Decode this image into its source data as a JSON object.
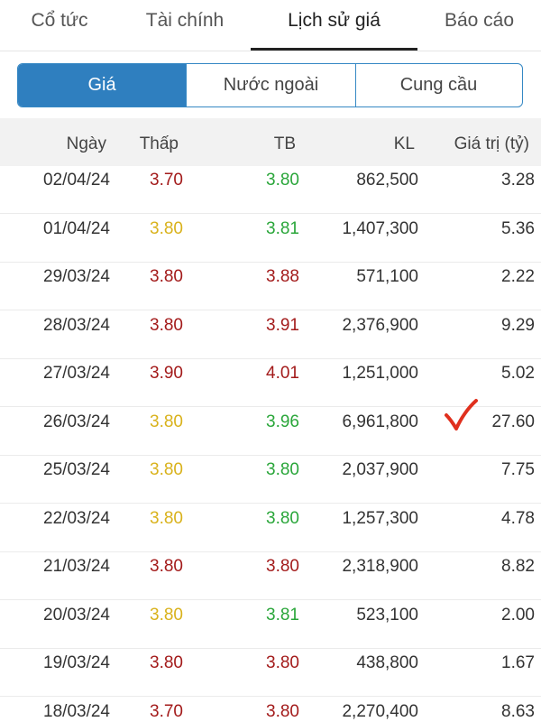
{
  "tabs": [
    {
      "label": "Cổ tức"
    },
    {
      "label": "Tài chính"
    },
    {
      "label": "Lịch sử giá"
    },
    {
      "label": "Báo cáo"
    }
  ],
  "segments": [
    {
      "label": "Giá"
    },
    {
      "label": "Nước ngoài"
    },
    {
      "label": "Cung cầu"
    }
  ],
  "table": {
    "headers": [
      "Ngày",
      "Thấp",
      "TB",
      "KL",
      "Giá trị (tỷ)"
    ],
    "rows": [
      {
        "date": "02/04/24",
        "low": "3.70",
        "low_color": "red",
        "avg": "3.80",
        "avg_color": "green",
        "vol": "862,500",
        "value": "3.28"
      },
      {
        "date": "01/04/24",
        "low": "3.80",
        "low_color": "yellow",
        "avg": "3.81",
        "avg_color": "green",
        "vol": "1,407,300",
        "value": "5.36"
      },
      {
        "date": "29/03/24",
        "low": "3.80",
        "low_color": "red",
        "avg": "3.88",
        "avg_color": "red",
        "vol": "571,100",
        "value": "2.22"
      },
      {
        "date": "28/03/24",
        "low": "3.80",
        "low_color": "red",
        "avg": "3.91",
        "avg_color": "red",
        "vol": "2,376,900",
        "value": "9.29"
      },
      {
        "date": "27/03/24",
        "low": "3.90",
        "low_color": "red",
        "avg": "4.01",
        "avg_color": "red",
        "vol": "1,251,000",
        "value": "5.02"
      },
      {
        "date": "26/03/24",
        "low": "3.80",
        "low_color": "yellow",
        "avg": "3.96",
        "avg_color": "green",
        "vol": "6,961,800",
        "value": "27.60"
      },
      {
        "date": "25/03/24",
        "low": "3.80",
        "low_color": "yellow",
        "avg": "3.80",
        "avg_color": "green",
        "vol": "2,037,900",
        "value": "7.75"
      },
      {
        "date": "22/03/24",
        "low": "3.80",
        "low_color": "yellow",
        "avg": "3.80",
        "avg_color": "green",
        "vol": "1,257,300",
        "value": "4.78"
      },
      {
        "date": "21/03/24",
        "low": "3.80",
        "low_color": "red",
        "avg": "3.80",
        "avg_color": "red",
        "vol": "2,318,900",
        "value": "8.82"
      },
      {
        "date": "20/03/24",
        "low": "3.80",
        "low_color": "yellow",
        "avg": "3.81",
        "avg_color": "green",
        "vol": "523,100",
        "value": "2.00"
      },
      {
        "date": "19/03/24",
        "low": "3.80",
        "low_color": "red",
        "avg": "3.80",
        "avg_color": "red",
        "vol": "438,800",
        "value": "1.67"
      },
      {
        "date": "18/03/24",
        "low": "3.70",
        "low_color": "red",
        "avg": "3.80",
        "avg_color": "red",
        "vol": "2,270,400",
        "value": "8.63"
      }
    ]
  },
  "colors": {
    "red": "#a31b1b",
    "yellow": "#d9b21c",
    "green": "#2aa63a",
    "accent": "#2f7fbf",
    "check_mark": "#e0301e"
  },
  "annotation": {
    "icon": "checkmark-icon"
  }
}
